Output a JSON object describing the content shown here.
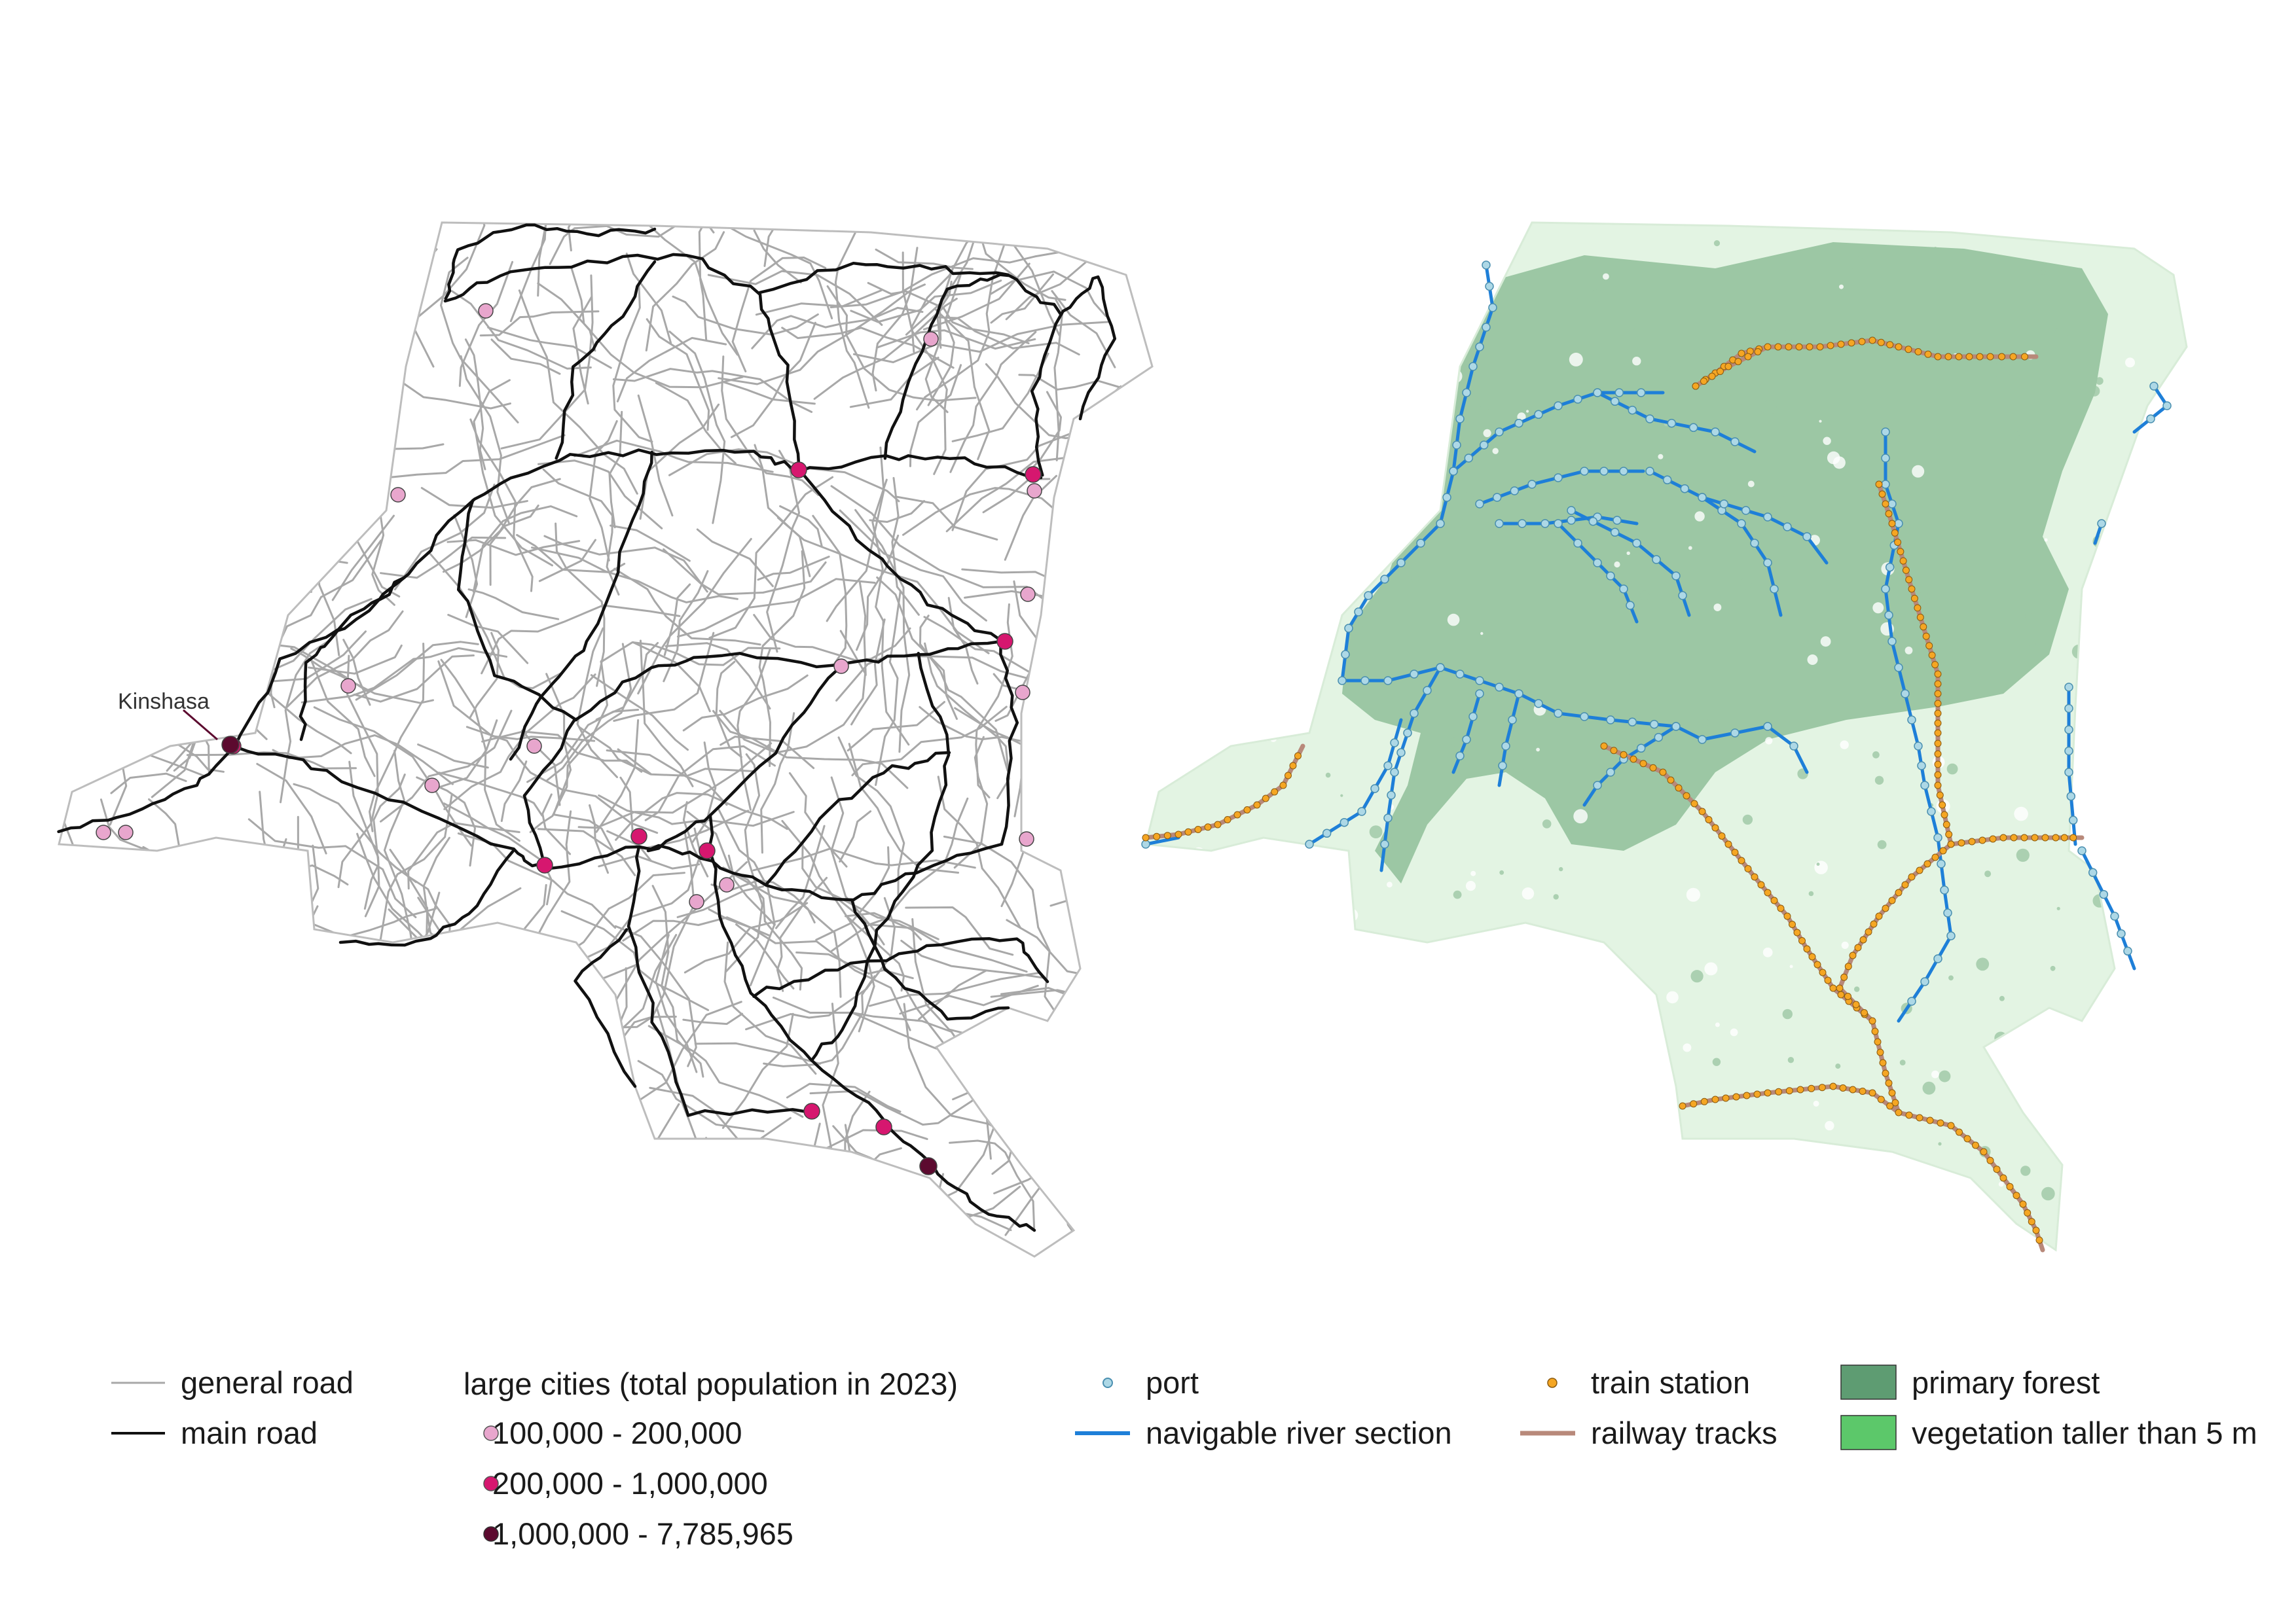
{
  "colors": {
    "general_road": "#a8a8a8",
    "main_road": "#111111",
    "city_small": "#e8a6cd",
    "city_medium": "#d6176f",
    "city_large": "#5c0a2f",
    "port": "#add8e6",
    "river": "#1e7fd8",
    "train_station": "#f5a623",
    "railway": "#b8897a",
    "primary_forest": "#9cc7a4",
    "vegetation": "#e3f4e3",
    "legend_primary_forest": "#5e9c72",
    "legend_vegetation": "#5cc86a"
  },
  "map_label": {
    "capital": "Kinshasa"
  },
  "legend": {
    "general_road": "general road",
    "main_road": "main road",
    "cities_title": "large cities (total population in 2023)",
    "city_class_1": "100,000 - 200,000",
    "city_class_2": "200,000 - 1,000,000",
    "city_class_3": "1,000,000 - 7,785,965",
    "port": "port",
    "river": "navigable river section",
    "train_station": "train station",
    "railway": "railway tracks",
    "primary_forest": "primary forest",
    "vegetation": "vegetation taller than 5 m"
  }
}
